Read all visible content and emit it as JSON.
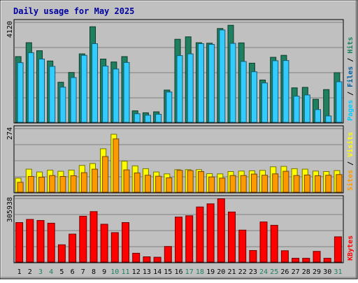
{
  "chart_data": {
    "type": "bar",
    "title": "Daily usage for May 2025",
    "categories": [
      "1",
      "2",
      "3",
      "4",
      "5",
      "6",
      "7",
      "8",
      "9",
      "10",
      "11",
      "12",
      "13",
      "14",
      "15",
      "16",
      "17",
      "18",
      "19",
      "20",
      "21",
      "22",
      "23",
      "24",
      "25",
      "26",
      "27",
      "28",
      "29",
      "30",
      "31"
    ],
    "weekend_days": [
      "3",
      "4",
      "10",
      "11",
      "17",
      "18",
      "24",
      "25",
      "31"
    ],
    "panels": [
      {
        "id": "hits",
        "ymax": 4120,
        "ymax_label": "4120",
        "axis_label_parts": [
          "Pages",
          " / ",
          "Files",
          " / ",
          "Hits"
        ],
        "series": [
          {
            "name": "Hits",
            "color": "#1e8060",
            "values": [
              2690,
              3260,
              2930,
              2510,
              1640,
              2040,
              2800,
              3910,
              2590,
              2470,
              2690,
              470,
              390,
              430,
              1320,
              3400,
              3500,
              3260,
              3240,
              3840,
              3970,
              3250,
              2420,
              1730,
              2660,
              2740,
              1410,
              1430,
              940,
              1340,
              2030
            ]
          },
          {
            "name": "Files",
            "color": "#0a6080",
            "values": [
              0,
              0,
              0,
              0,
              0,
              0,
              0,
              0,
              0,
              0,
              0,
              0,
              0,
              0,
              0,
              0,
              0,
              0,
              0,
              0,
              0,
              0,
              0,
              0,
              0,
              0,
              0,
              0,
              0,
              0,
              0
            ]
          },
          {
            "name": "Pages",
            "color": "#33ccff",
            "values": [
              2440,
              2850,
              2590,
              2290,
              1440,
              1830,
              2740,
              3220,
              2300,
              2180,
              2450,
              350,
              290,
              330,
              1240,
              2730,
              2800,
              3220,
              3190,
              3780,
              3230,
              2490,
              2070,
              1610,
              2520,
              2530,
              1070,
              1120,
              520,
              260,
              1660
            ]
          }
        ]
      },
      {
        "id": "visits",
        "ymax": 274,
        "ymax_label": "274",
        "axis_label_parts": [
          "Sites",
          " / ",
          "Visits"
        ],
        "series": [
          {
            "name": "Visits",
            "color": "#ffff00",
            "values": [
              60,
              98,
              86,
              94,
              89,
              94,
              114,
              122,
              185,
              247,
              132,
              112,
              100,
              86,
              78,
              96,
              96,
              96,
              79,
              78,
              88,
              90,
              91,
              93,
              108,
              110,
              100,
              98,
              90,
              88,
              92
            ]
          },
          {
            "name": "Sites",
            "color": "#ff9900",
            "values": [
              42,
              67,
              64,
              71,
              67,
              70,
              83,
              98,
              152,
              227,
              95,
              82,
              72,
              68,
              61,
              93,
              92,
              88,
              65,
              60,
              71,
              71,
              77,
              72,
              78,
              89,
              71,
              73,
              70,
              72,
              75
            ]
          }
        ]
      },
      {
        "id": "kbytes",
        "ymax": 305938,
        "ymax_label": "305938",
        "axis_label_parts": [
          "KBytes"
        ],
        "series": [
          {
            "name": "KBytes",
            "color": "#ff0000",
            "values": [
              188000,
              203000,
              198000,
              185000,
              82000,
              133000,
              218000,
              240000,
              180000,
              140000,
              188000,
              42000,
              25000,
              23000,
              74000,
              214000,
              220000,
              262000,
              277000,
              301000,
              238000,
              152000,
              55000,
              191000,
              175000,
              54000,
              18000,
              18000,
              51000,
              18000,
              120000
            ]
          }
        ]
      }
    ]
  }
}
